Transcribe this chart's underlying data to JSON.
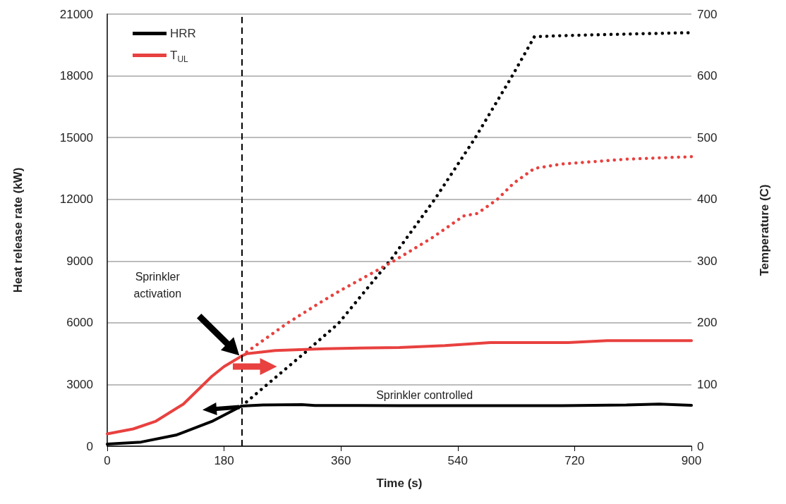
{
  "chart_data": {
    "type": "line",
    "xlabel": "Time (s)",
    "ylabel": "Heat release rate (kW)",
    "y2label": "Temperature (C)",
    "xlim": [
      0,
      900
    ],
    "xticks": [
      0,
      180,
      360,
      540,
      720,
      900
    ],
    "ylim": [
      0,
      21000
    ],
    "yticks": [
      0,
      3000,
      6000,
      9000,
      12000,
      15000,
      18000,
      21000
    ],
    "y2lim": [
      0,
      700
    ],
    "y2ticks": [
      0,
      100,
      200,
      300,
      400,
      500,
      600,
      700
    ],
    "grid": "y",
    "legend": "top left",
    "series": [
      {
        "name": "HRR",
        "color": "#000000",
        "line_style": "solid",
        "x": [
          0,
          52,
          107,
          161,
          207,
          240,
          300,
          320,
          450,
          600,
          700,
          800,
          850,
          900
        ],
        "values": [
          100,
          200,
          550,
          1200,
          1950,
          2000,
          2020,
          1980,
          1970,
          1970,
          1970,
          2000,
          2050,
          1990
        ]
      },
      {
        "name": "T$_{UL}$",
        "color": "#e8413f",
        "axis": "y2",
        "line_style": "solid",
        "x": [
          0,
          40,
          74,
          117,
          161,
          180,
          207,
          215,
          259,
          335,
          450,
          520,
          590,
          710,
          770,
          900
        ],
        "values": [
          20,
          28,
          40,
          68,
          113,
          129,
          146,
          150,
          155,
          158,
          160,
          163,
          168,
          168,
          171,
          171
        ]
      },
      {
        "color": "#000000",
        "line_style": "dotted",
        "x": [
          207,
          305,
          356,
          438,
          505,
          566,
          623,
          658,
          700,
          800,
          900
        ],
        "values": [
          1950,
          4560,
          5960,
          9110,
          12020,
          14940,
          17950,
          19900,
          19950,
          20030,
          20100
        ]
      },
      {
        "color": "#e8413f",
        "axis": "y2",
        "line_style": "dotted",
        "x": [
          207,
          218,
          277,
          327,
          357,
          416,
          443,
          501,
          549,
          570,
          601,
          626,
          658,
          699,
          800,
          900
        ],
        "values": [
          146,
          155,
          199,
          232,
          251,
          285,
          301,
          338,
          373,
          377,
          400,
          426,
          450,
          457,
          465,
          469
        ]
      }
    ],
    "ref_lines": [
      {
        "axis": "x",
        "value": 207,
        "color": "#000000",
        "line_style": "dashed"
      }
    ],
    "annotations": [
      "Sprinkler activation",
      "Sprinkler controlled"
    ]
  }
}
